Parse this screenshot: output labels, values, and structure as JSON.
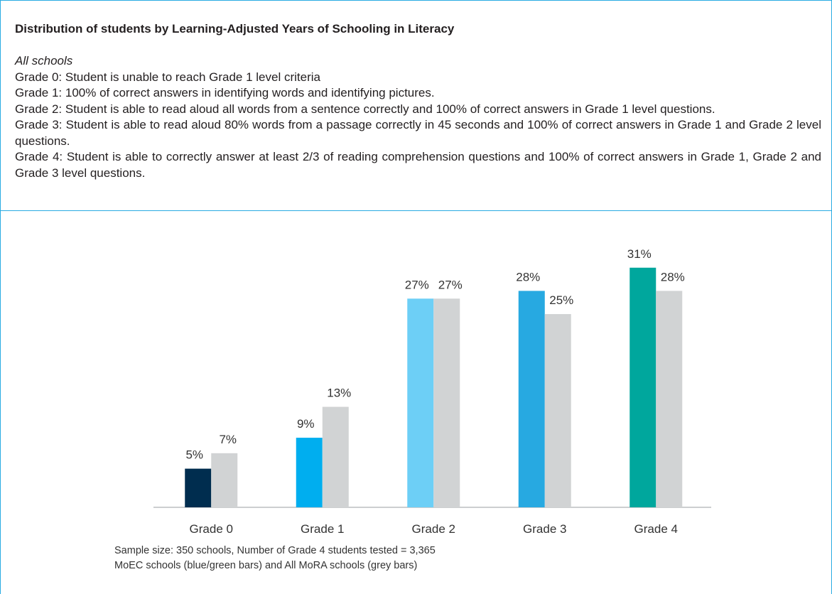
{
  "chart_data": {
    "type": "bar",
    "title": "Distribution of students by Learning-Adjusted Years of Schooling in Literacy",
    "subtitle": "All schools",
    "description": [
      "Grade 0: Student is unable to reach Grade 1 level criteria",
      "Grade 1: 100% of correct answers in identifying words and identifying pictures.",
      "Grade 2: Student is able to read aloud all words from a sentence correctly and 100% of correct answers in Grade 1 level questions.",
      "Grade 3: Student is able to read aloud 80% words from a passage correctly in 45 seconds and 100% of correct answers in Grade 1 and Grade 2 level questions.",
      "Grade 4: Student is able to correctly answer at least 2/3 of reading comprehension questions and 100% of correct answers in Grade 1, Grade 2 and Grade 3 level questions."
    ],
    "categories": [
      "Grade 0",
      "Grade 1",
      "Grade 2",
      "Grade 3",
      "Grade 4"
    ],
    "series": [
      {
        "colors": [
          "#002d4f",
          "#00aeef",
          "#6dcff6",
          "#27a9e1",
          "#00a79d"
        ],
        "values": [
          5,
          9,
          27,
          28,
          31
        ],
        "value_labels": [
          "5%",
          "9%",
          "27%",
          "28%",
          "31%"
        ]
      },
      {
        "color": "#d1d3d4",
        "values": [
          7,
          13,
          27,
          25,
          28
        ],
        "value_labels": [
          "7%",
          "13%",
          "27%",
          "25%",
          "28%"
        ]
      }
    ],
    "ylim": [
      0,
      33
    ],
    "notes": [
      "Sample size: 350 schools, Number of Grade 4 students tested = 3,365",
      "MoEC schools (blue/green bars) and All MoRA schools (grey bars)"
    ]
  }
}
